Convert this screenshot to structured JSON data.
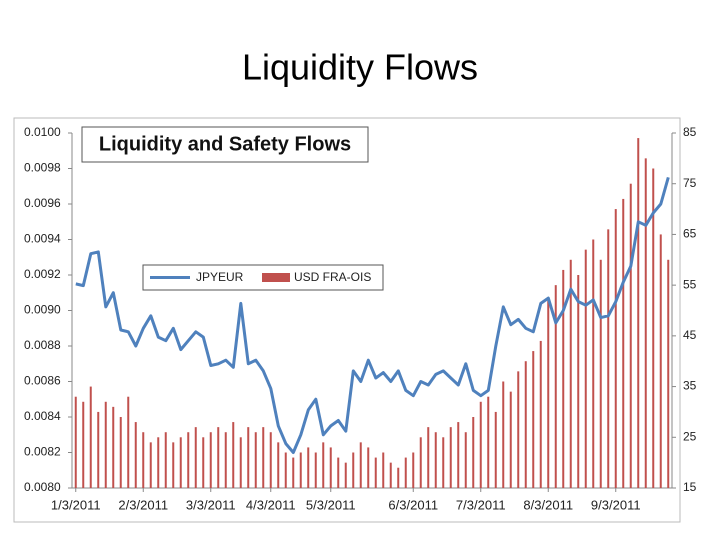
{
  "slide": {
    "title": "Liquidity Flows"
  },
  "chart_data": {
    "type": "combo",
    "title": "Liquidity and Safety Flows",
    "categories": [
      "1/3/2011",
      null,
      null,
      null,
      null,
      null,
      null,
      null,
      null,
      "2/3/2011",
      null,
      null,
      null,
      null,
      null,
      null,
      null,
      null,
      "3/3/2011",
      null,
      null,
      null,
      null,
      null,
      null,
      null,
      "4/3/2011",
      null,
      null,
      null,
      null,
      null,
      null,
      null,
      "5/3/2011",
      null,
      null,
      null,
      null,
      null,
      null,
      null,
      null,
      null,
      null,
      "6/3/2011",
      null,
      null,
      null,
      null,
      null,
      null,
      null,
      null,
      "7/3/2011",
      null,
      null,
      null,
      null,
      null,
      null,
      null,
      null,
      "8/3/2011",
      null,
      null,
      null,
      null,
      null,
      null,
      null,
      null,
      "9/3/2011",
      null,
      null,
      null,
      null,
      null,
      null,
      null
    ],
    "series": [
      {
        "name": "JPYEUR",
        "type": "line",
        "axis": "y",
        "color": "#4f81bd",
        "values": [
          0.00915,
          0.00914,
          0.00932,
          0.00933,
          0.00902,
          0.0091,
          0.00889,
          0.00888,
          0.0088,
          0.0089,
          0.00897,
          0.00885,
          0.00883,
          0.0089,
          0.00878,
          0.00883,
          0.00888,
          0.00885,
          0.00869,
          0.0087,
          0.00872,
          0.00868,
          0.00904,
          0.0087,
          0.00872,
          0.00866,
          0.00856,
          0.00835,
          0.00825,
          0.0082,
          0.0083,
          0.00844,
          0.0085,
          0.0083,
          0.00835,
          0.00838,
          0.00832,
          0.00866,
          0.0086,
          0.00872,
          0.00862,
          0.00865,
          0.0086,
          0.00866,
          0.00855,
          0.00852,
          0.0086,
          0.00858,
          0.00864,
          0.00866,
          0.00862,
          0.00858,
          0.0087,
          0.00855,
          0.00852,
          0.00855,
          0.0088,
          0.00902,
          0.00892,
          0.00895,
          0.0089,
          0.00888,
          0.00904,
          0.00907,
          0.00893,
          0.009,
          0.00912,
          0.00905,
          0.00903,
          0.00906,
          0.00896,
          0.00897,
          0.00905,
          0.00916,
          0.00925,
          0.0095,
          0.00948,
          0.00955,
          0.0096,
          0.00975
        ]
      },
      {
        "name": "USD FRA-OIS",
        "type": "bar",
        "axis": "y2",
        "color": "#c0504d",
        "values": [
          33,
          32,
          35,
          30,
          32,
          31,
          29,
          33,
          28,
          26,
          24,
          25,
          26,
          24,
          25,
          26,
          27,
          25,
          26,
          27,
          26,
          28,
          25,
          27,
          26,
          27,
          26,
          24,
          22,
          21,
          22,
          23,
          22,
          24,
          23,
          21,
          20,
          22,
          24,
          23,
          21,
          22,
          20,
          19,
          21,
          22,
          25,
          27,
          26,
          25,
          27,
          28,
          26,
          29,
          32,
          33,
          30,
          36,
          34,
          38,
          40,
          42,
          44,
          52,
          55,
          58,
          60,
          57,
          62,
          64,
          60,
          66,
          70,
          72,
          75,
          84,
          80,
          78,
          65,
          60
        ]
      }
    ],
    "ylim": [
      0.008,
      0.01
    ],
    "yticks": [
      {
        "value": 0.008,
        "label": "0.0080"
      },
      {
        "value": 0.0082,
        "label": "0.0082"
      },
      {
        "value": 0.0084,
        "label": "0.0084"
      },
      {
        "value": 0.0086,
        "label": "0.0086"
      },
      {
        "value": 0.0088,
        "label": "0.0088"
      },
      {
        "value": 0.009,
        "label": "0.0090"
      },
      {
        "value": 0.0092,
        "label": "0.0092"
      },
      {
        "value": 0.0094,
        "label": "0.0094"
      },
      {
        "value": 0.0096,
        "label": "0.0096"
      },
      {
        "value": 0.0098,
        "label": "0.0098"
      },
      {
        "value": 0.01,
        "label": "0.0100"
      }
    ],
    "y2lim": [
      15,
      85
    ],
    "y2ticks": [
      15,
      25,
      35,
      45,
      55,
      65,
      75,
      85
    ],
    "grid": false
  }
}
